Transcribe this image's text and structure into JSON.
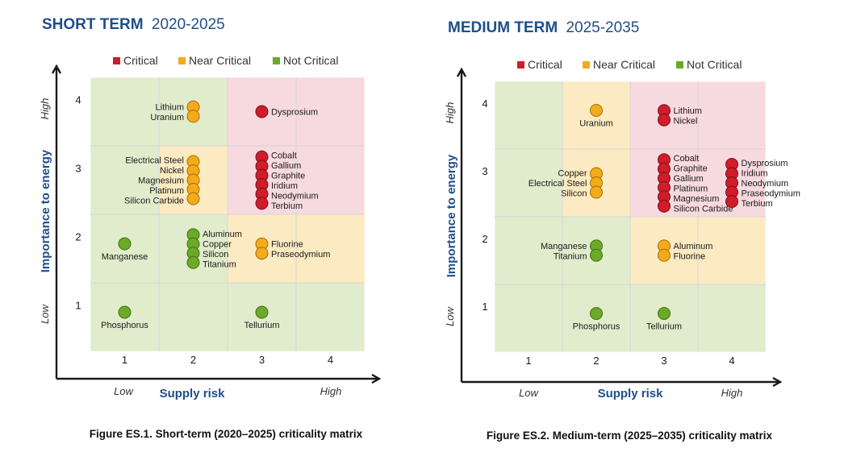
{
  "colors": {
    "critical": "#d01c2b",
    "near_critical": "#f4ab1a",
    "not_critical": "#6aaa28",
    "title": "#1f4e8c"
  },
  "legend": {
    "critical": "Critical",
    "near_critical": "Near Critical",
    "not_critical": "Not Critical"
  },
  "chart_data": [
    {
      "type": "scatter",
      "title_bold": "SHORT TERM",
      "title_range": "2020-2025",
      "xlabel": "Supply risk",
      "ylabel": "Importance to energy",
      "x_low": "Low",
      "x_high": "High",
      "y_low": "Low",
      "y_high": "High",
      "x_ticks": [
        "1",
        "2",
        "3",
        "4"
      ],
      "y_ticks": [
        "1",
        "2",
        "3",
        "4"
      ],
      "caption": "Figure ES.1. Short-term (2020–2025) criticality matrix",
      "groups": [
        {
          "x": 2,
          "y": 4,
          "status": "near_critical",
          "label_side": "left",
          "elements": [
            "Lithium",
            "Uranium"
          ]
        },
        {
          "x": 3,
          "y": 4,
          "status": "critical",
          "label_side": "right",
          "elements": [
            "Dysprosium"
          ]
        },
        {
          "x": 2,
          "y": 3,
          "status": "near_critical",
          "label_side": "left",
          "elements": [
            "Electrical Steel",
            "Nickel",
            "Magnesium",
            "Platinum",
            "Silicon Carbide"
          ]
        },
        {
          "x": 3,
          "y": 3,
          "status": "critical",
          "label_side": "right",
          "elements": [
            "Cobalt",
            "Gallium",
            "Graphite",
            "Iridium",
            "Neodymium",
            "Terbium"
          ]
        },
        {
          "x": 1,
          "y": 2,
          "status": "not_critical",
          "label_side": "below",
          "elements": [
            "Manganese"
          ]
        },
        {
          "x": 2,
          "y": 2,
          "status": "not_critical",
          "label_side": "right",
          "elements": [
            "Aluminum",
            "Copper",
            "Silicon",
            "Titanium"
          ]
        },
        {
          "x": 3,
          "y": 2,
          "status": "near_critical",
          "label_side": "right",
          "elements": [
            "Fluorine",
            "Praseodymium"
          ]
        },
        {
          "x": 1,
          "y": 1,
          "status": "not_critical",
          "label_side": "below",
          "elements": [
            "Phosphorus"
          ]
        },
        {
          "x": 3,
          "y": 1,
          "status": "not_critical",
          "label_side": "below",
          "elements": [
            "Tellurium"
          ]
        }
      ]
    },
    {
      "type": "scatter",
      "title_bold": "MEDIUM TERM",
      "title_range": "2025-2035",
      "xlabel": "Supply risk",
      "ylabel": "Importance to energy",
      "x_low": "Low",
      "x_high": "High",
      "y_low": "Low",
      "y_high": "High",
      "x_ticks": [
        "1",
        "2",
        "3",
        "4"
      ],
      "y_ticks": [
        "1",
        "2",
        "3",
        "4"
      ],
      "caption": "Figure ES.2. Medium-term (2025–2035) criticality matrix",
      "groups": [
        {
          "x": 2,
          "y": 4,
          "status": "near_critical",
          "label_side": "below",
          "elements": [
            "Uranium"
          ]
        },
        {
          "x": 3,
          "y": 4,
          "status": "critical",
          "label_side": "right",
          "elements": [
            "Lithium",
            "Nickel"
          ]
        },
        {
          "x": 2,
          "y": 3,
          "status": "near_critical",
          "label_side": "left",
          "elements": [
            "Copper",
            "Electrical Steel",
            "Silicon"
          ]
        },
        {
          "x": 3,
          "y": 3,
          "status": "critical",
          "label_side": "right",
          "elements": [
            "Cobalt",
            "Graphite",
            "Gallium",
            "Platinum",
            "Magnesium",
            "Silicon Carbide"
          ]
        },
        {
          "x": 4,
          "y": 3,
          "status": "critical",
          "label_side": "right",
          "elements": [
            "Dysprosium",
            "Iridium",
            "Neodymium",
            "Praseodymium",
            "Terbium"
          ]
        },
        {
          "x": 2,
          "y": 2,
          "status": "not_critical",
          "label_side": "left",
          "elements": [
            "Manganese",
            "Titanium"
          ]
        },
        {
          "x": 3,
          "y": 2,
          "status": "near_critical",
          "label_side": "right",
          "elements": [
            "Aluminum",
            "Fluorine"
          ]
        },
        {
          "x": 2,
          "y": 1,
          "status": "not_critical",
          "label_side": "below",
          "elements": [
            "Phosphorus"
          ]
        },
        {
          "x": 3,
          "y": 1,
          "status": "not_critical",
          "label_side": "below",
          "elements": [
            "Tellurium"
          ]
        }
      ]
    }
  ]
}
